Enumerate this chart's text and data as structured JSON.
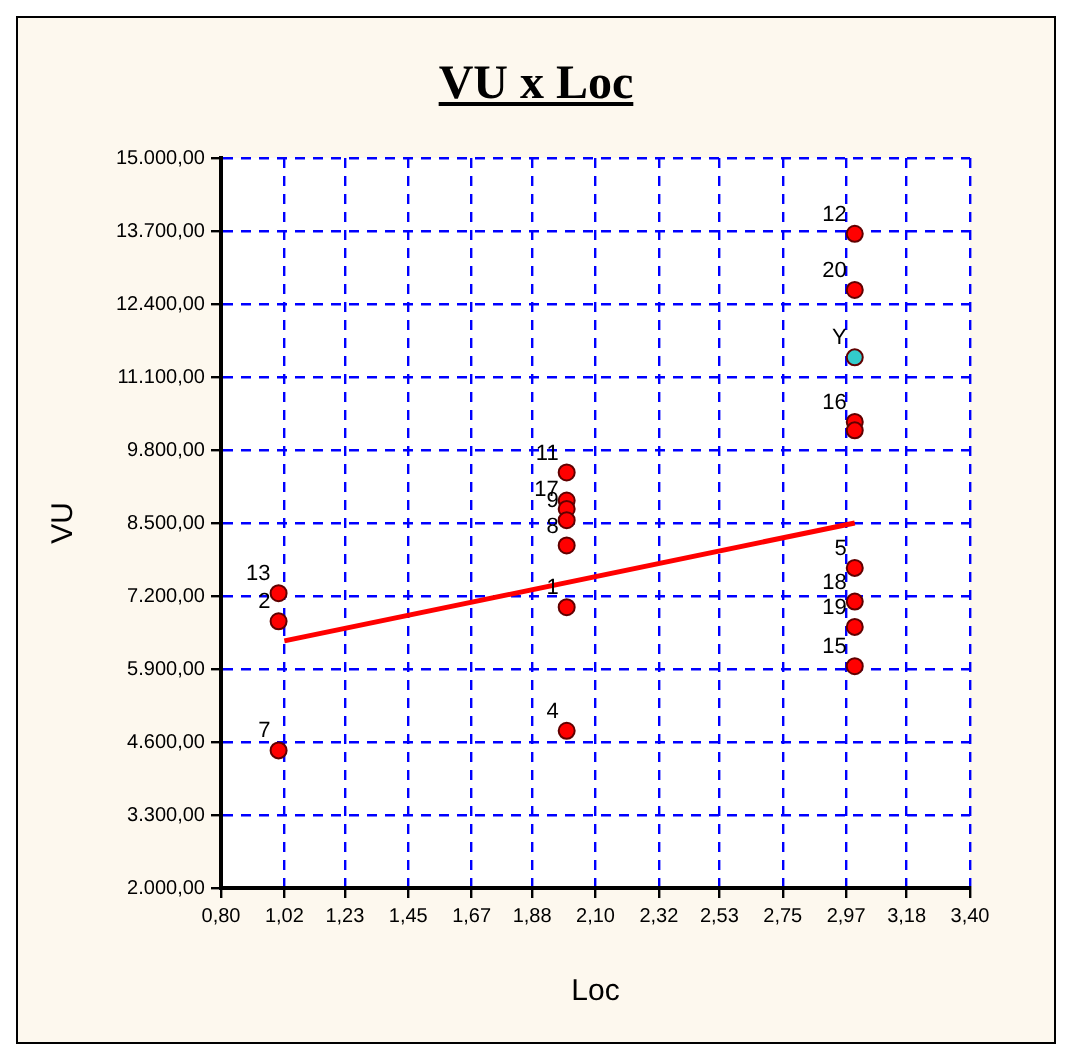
{
  "chart_data": {
    "type": "scatter",
    "title": "VU x Loc",
    "xlabel": "Loc",
    "ylabel": "VU",
    "xlim": [
      0.8,
      3.4
    ],
    "xticks": [
      {
        "value": 0.8,
        "label": "0,80"
      },
      {
        "value": 1.02,
        "label": "1,02"
      },
      {
        "value": 1.23,
        "label": "1,23"
      },
      {
        "value": 1.45,
        "label": "1,45"
      },
      {
        "value": 1.67,
        "label": "1,67"
      },
      {
        "value": 1.88,
        "label": "1,88"
      },
      {
        "value": 2.1,
        "label": "2,10"
      },
      {
        "value": 2.32,
        "label": "2,32"
      },
      {
        "value": 2.53,
        "label": "2,53"
      },
      {
        "value": 2.75,
        "label": "2,75"
      },
      {
        "value": 2.97,
        "label": "2,97"
      },
      {
        "value": 3.18,
        "label": "3,18"
      },
      {
        "value": 3.4,
        "label": "3,40"
      }
    ],
    "ylim": [
      2000,
      15000
    ],
    "yticks": [
      {
        "value": 2000,
        "label": "2.000,00"
      },
      {
        "value": 3300,
        "label": "3.300,00"
      },
      {
        "value": 4600,
        "label": "4.600,00"
      },
      {
        "value": 5900,
        "label": "5.900,00"
      },
      {
        "value": 7200,
        "label": "7.200,00"
      },
      {
        "value": 8500,
        "label": "8.500,00"
      },
      {
        "value": 9800,
        "label": "9.800,00"
      },
      {
        "value": 11100,
        "label": "11.100,00"
      },
      {
        "value": 12400,
        "label": "12.400,00"
      },
      {
        "value": 13700,
        "label": "13.700,00"
      },
      {
        "value": 15000,
        "label": "15.000,00"
      }
    ],
    "grid": true,
    "marker": "circle",
    "line_style": "dashed",
    "series": [
      {
        "color": "#ff0000",
        "x": [
          1.0,
          1.0,
          1.0,
          2.0,
          2.0,
          2.0,
          2.0,
          2.0,
          2.0,
          2.0,
          3.0,
          3.0,
          3.0,
          3.0,
          3.0,
          3.0,
          3.0,
          3.0
        ],
        "values": [
          7250,
          6750,
          4450,
          9400,
          8900,
          8750,
          8550,
          8100,
          7000,
          4800,
          13650,
          12650,
          10300,
          10150,
          7700,
          7100,
          6650,
          5950
        ]
      },
      {
        "color": "#33cccc",
        "x": [
          3.0
        ],
        "values": [
          11450
        ]
      },
      {
        "type": "line",
        "color": "#ff0000",
        "marker": "none",
        "line_style": "solid",
        "x": [
          1.02,
          3.0
        ],
        "values": [
          6400,
          8500
        ]
      }
    ],
    "annotations": [
      {
        "text": "13",
        "x": 1.0,
        "y": 7250
      },
      {
        "text": "2",
        "x": 1.0,
        "y": 6750
      },
      {
        "text": "7",
        "x": 1.0,
        "y": 4450
      },
      {
        "text": "11",
        "x": 2.0,
        "y": 9400
      },
      {
        "text": "17",
        "x": 2.0,
        "y": 8750
      },
      {
        "text": "9",
        "x": 2.0,
        "y": 8550
      },
      {
        "text": "8",
        "x": 2.0,
        "y": 8100
      },
      {
        "text": "1",
        "x": 2.0,
        "y": 7000
      },
      {
        "text": "4",
        "x": 2.0,
        "y": 4800
      },
      {
        "text": "12",
        "x": 3.0,
        "y": 13650
      },
      {
        "text": "20",
        "x": 3.0,
        "y": 12650
      },
      {
        "text": "Y",
        "x": 3.0,
        "y": 11450
      },
      {
        "text": "16",
        "x": 3.0,
        "y": 10300
      },
      {
        "text": "5",
        "x": 3.0,
        "y": 7700
      },
      {
        "text": "18",
        "x": 3.0,
        "y": 7100
      },
      {
        "text": "19",
        "x": 3.0,
        "y": 6650
      },
      {
        "text": "15",
        "x": 3.0,
        "y": 5950
      }
    ]
  }
}
